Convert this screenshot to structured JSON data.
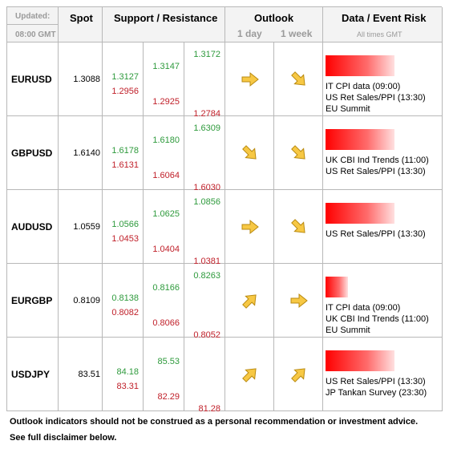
{
  "header": {
    "updated": "Updated:",
    "time": "08:00 GMT",
    "spot": "Spot",
    "sr": "Support / Resistance",
    "outlook": "Outlook",
    "day": "1 day",
    "week": "1 week",
    "events": "Data / Event Risk",
    "times": "All times GMT"
  },
  "rows": [
    {
      "pair": "EURUSD",
      "spot": "1.3088",
      "resistance": [
        "1.3127",
        "1.3147",
        "1.3172"
      ],
      "support": [
        "1.2956",
        "1.2925",
        "1.2784"
      ],
      "events": [
        "IT CPI data (09:00)",
        "US Ret Sales/PPI (13:30)",
        "EU Summit"
      ]
    },
    {
      "pair": "GBPUSD",
      "spot": "1.6140",
      "resistance": [
        "1.6178",
        "1.6180",
        "1.6309"
      ],
      "support": [
        "1.6131",
        "1.6064",
        "1.6030"
      ],
      "events": [
        "UK CBI Ind Trends (11:00)",
        "US Ret Sales/PPI (13:30)"
      ]
    },
    {
      "pair": "AUDUSD",
      "spot": "1.0559",
      "resistance": [
        "1.0566",
        "1.0625",
        "1.0856"
      ],
      "support": [
        "1.0453",
        "1.0404",
        "1.0381"
      ],
      "events": [
        "US Ret Sales/PPI (13:30)"
      ]
    },
    {
      "pair": "EURGBP",
      "spot": "0.8109",
      "resistance": [
        "0.8138",
        "0.8166",
        "0.8263"
      ],
      "support": [
        "0.8082",
        "0.8066",
        "0.8052"
      ],
      "events": [
        "IT CPI data (09:00)",
        "UK CBI Ind Trends (11:00)",
        "EU Summit"
      ]
    },
    {
      "pair": "USDJPY",
      "spot": "83.51",
      "resistance": [
        "84.18",
        "85.53"
      ],
      "support": [
        "83.31",
        "82.29",
        "81.28"
      ],
      "events": [
        "US Ret Sales/PPI (13:30)",
        "JP Tankan Survey (23:30)"
      ]
    }
  ],
  "footnote": [
    "Outlook indicators should not be construed as a personal recommendation or investment advice.",
    "See full disclaimer below."
  ]
}
